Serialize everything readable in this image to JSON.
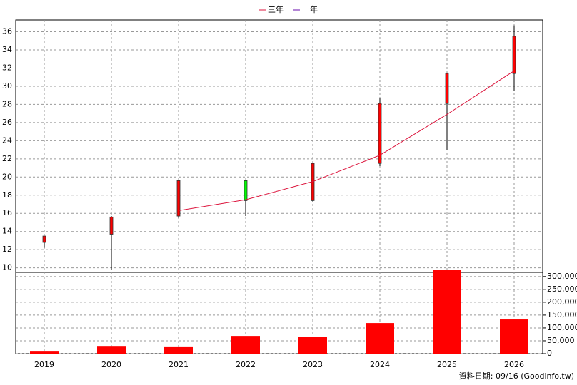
{
  "chart_data": {
    "type": "candlestick",
    "categories": [
      "2019",
      "2020",
      "2021",
      "2022",
      "2023",
      "2024",
      "2025",
      "2026"
    ],
    "open": [
      12.8,
      13.7,
      15.7,
      19.6,
      17.4,
      21.5,
      28.1,
      31.4
    ],
    "high": [
      13.5,
      15.7,
      19.6,
      19.6,
      21.6,
      28.7,
      31.5,
      36.7
    ],
    "low": [
      12.2,
      9.8,
      15.5,
      15.7,
      17.3,
      21.2,
      23.0,
      29.5
    ],
    "close": [
      13.5,
      15.6,
      19.6,
      17.4,
      21.5,
      28.1,
      31.4,
      35.5
    ],
    "up_color": "#ff0000",
    "down_color": "#00ff00",
    "series": [
      {
        "name": "三年",
        "color": "#dc143c",
        "values": [
          null,
          null,
          16.3,
          17.5,
          19.5,
          22.4,
          26.9,
          31.7
        ]
      },
      {
        "name": "十年",
        "color": "#6a0dad",
        "values": [
          null,
          null,
          null,
          null,
          null,
          null,
          null,
          null
        ]
      }
    ],
    "ylim": [
      9.5,
      37.3
    ],
    "yticks": [
      10,
      12,
      14,
      16,
      18,
      20,
      22,
      24,
      26,
      28,
      30,
      32,
      34,
      36
    ],
    "volume": {
      "color": "#ff0000",
      "values": [
        8000,
        30000,
        28000,
        69000,
        64000,
        119000,
        325000,
        133000
      ]
    },
    "y2lim": [
      0,
      330000
    ],
    "y2ticks": [
      0,
      {
        "value": 50000,
        "label": "50,000"
      },
      {
        "value": 100000,
        "label": "100,000"
      },
      {
        "value": 150000,
        "label": "150,000"
      },
      {
        "value": 200000,
        "label": "200,000"
      },
      {
        "value": 250000,
        "label": "250,000"
      },
      {
        "value": 300000,
        "label": "300,000"
      }
    ],
    "grid": true,
    "legend": "top",
    "source": "資料日期: 09/16 (Goodinfo.tw)"
  }
}
